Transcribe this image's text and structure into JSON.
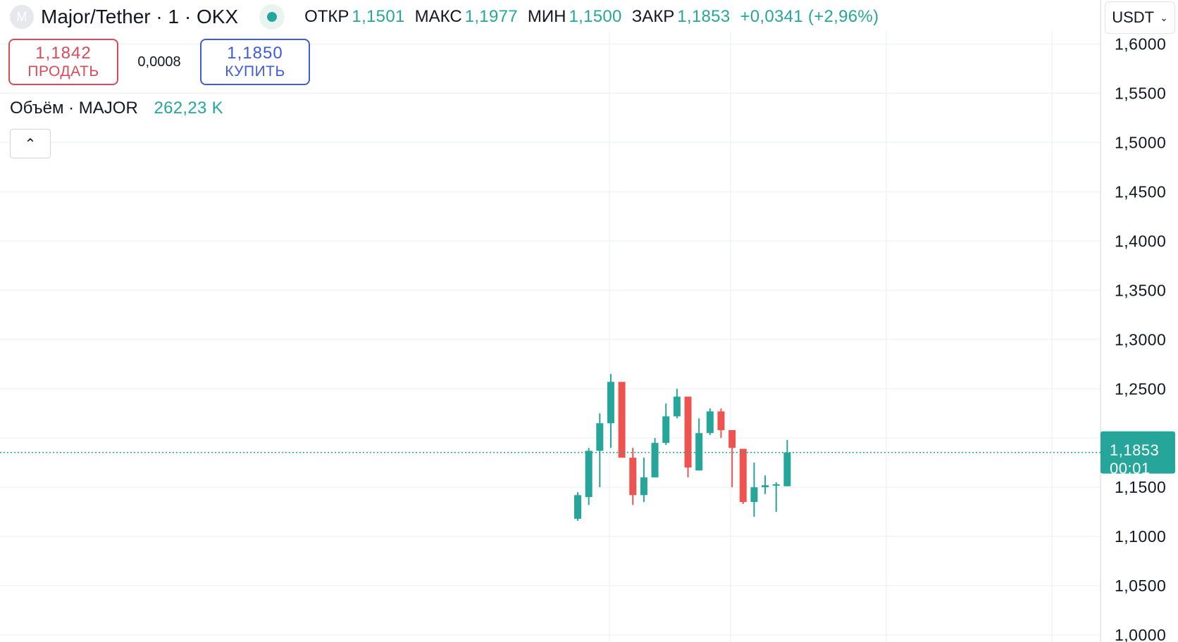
{
  "header": {
    "icon_letter": "M",
    "symbol_title": "Major/Tether · 1 · OKX",
    "ohlc": {
      "open_label": "ОТКР",
      "open": "1,1501",
      "high_label": "МАКС",
      "high": "1,1977",
      "low_label": "МИН",
      "low": "1,1500",
      "close_label": "ЗАКР",
      "close": "1,1853",
      "change": "+0,0341 (+2,96%)"
    }
  },
  "currency": {
    "label": "USDT"
  },
  "trade": {
    "sell_price": "1,1842",
    "sell_label": "ПРОДАТЬ",
    "spread": "0,0008",
    "buy_price": "1,1850",
    "buy_label": "КУПИТЬ"
  },
  "volume": {
    "label": "Объём · MAJOR",
    "value": "262,23 K"
  },
  "colors": {
    "up": "#26a69a",
    "down": "#ef5350",
    "grid": "#f0f3fa"
  },
  "chart_data": {
    "type": "candlestick",
    "y_axis": {
      "min": 1.0,
      "max": 1.6,
      "step": 0.05,
      "tick_labels": [
        "1,0000",
        "1,0500",
        "1,1000",
        "1,1500",
        "1,2000",
        "1,2500",
        "1,3000",
        "1,3500",
        "1,4000",
        "1,4500",
        "1,5000",
        "1,5500",
        "1,6000"
      ]
    },
    "last_price": {
      "value": 1.1853,
      "label": "1,1853",
      "countdown": "00:01"
    },
    "candles": [
      {
        "o": 1.118,
        "h": 1.145,
        "l": 1.116,
        "c": 1.142
      },
      {
        "o": 1.14,
        "h": 1.19,
        "l": 1.132,
        "c": 1.187
      },
      {
        "o": 1.187,
        "h": 1.225,
        "l": 1.15,
        "c": 1.215
      },
      {
        "o": 1.215,
        "h": 1.265,
        "l": 1.19,
        "c": 1.257
      },
      {
        "o": 1.257,
        "h": 1.257,
        "l": 1.18,
        "c": 1.18
      },
      {
        "o": 1.18,
        "h": 1.19,
        "l": 1.132,
        "c": 1.142
      },
      {
        "o": 1.142,
        "h": 1.18,
        "l": 1.135,
        "c": 1.16
      },
      {
        "o": 1.16,
        "h": 1.2,
        "l": 1.16,
        "c": 1.195
      },
      {
        "o": 1.195,
        "h": 1.235,
        "l": 1.193,
        "c": 1.222
      },
      {
        "o": 1.222,
        "h": 1.25,
        "l": 1.22,
        "c": 1.242
      },
      {
        "o": 1.242,
        "h": 1.242,
        "l": 1.16,
        "c": 1.17
      },
      {
        "o": 1.167,
        "h": 1.22,
        "l": 1.167,
        "c": 1.205
      },
      {
        "o": 1.205,
        "h": 1.23,
        "l": 1.203,
        "c": 1.227
      },
      {
        "o": 1.227,
        "h": 1.23,
        "l": 1.2,
        "c": 1.208
      },
      {
        "o": 1.208,
        "h": 1.208,
        "l": 1.15,
        "c": 1.19
      },
      {
        "o": 1.189,
        "h": 1.189,
        "l": 1.133,
        "c": 1.135
      },
      {
        "o": 1.135,
        "h": 1.175,
        "l": 1.12,
        "c": 1.15
      },
      {
        "o": 1.15,
        "h": 1.162,
        "l": 1.143,
        "c": 1.152
      },
      {
        "o": 1.152,
        "h": 1.155,
        "l": 1.125,
        "c": 1.153
      },
      {
        "o": 1.151,
        "h": 1.198,
        "l": 1.151,
        "c": 1.1853
      }
    ]
  }
}
